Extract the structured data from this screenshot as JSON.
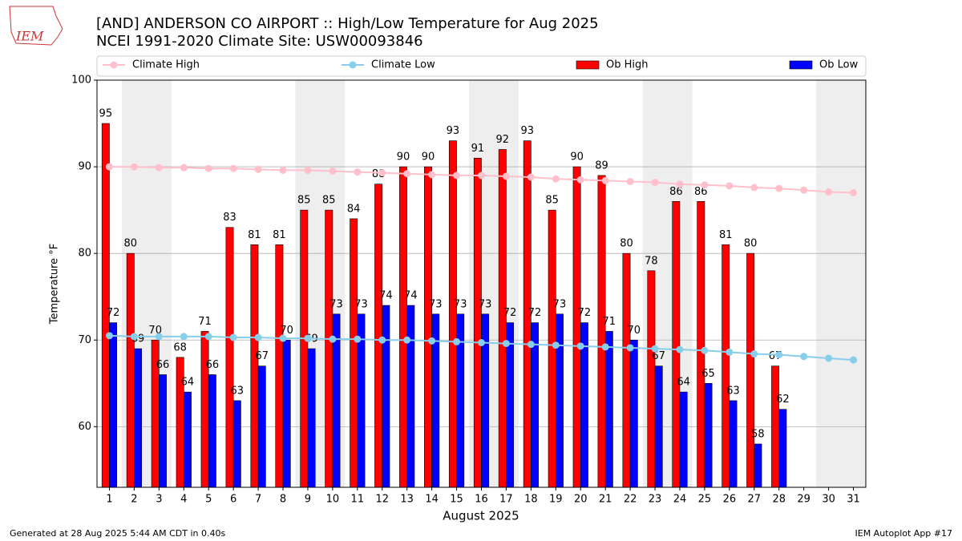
{
  "chart_data": {
    "type": "bar",
    "title": "[AND] ANDERSON CO AIRPORT :: High/Low Temperature for Aug 2025",
    "subtitle": "NCEI 1991-2020 Climate Site: USW00093846",
    "logo_text": "IEM",
    "xlabel": "August 2025",
    "ylabel": "Temperature °F",
    "footer_left": "Generated at 28 Aug 2025 5:44 AM CDT in 0.40s",
    "footer_right": "IEM Autoplot App #17",
    "x": [
      1,
      2,
      3,
      4,
      5,
      6,
      7,
      8,
      9,
      10,
      11,
      12,
      13,
      14,
      15,
      16,
      17,
      18,
      19,
      20,
      21,
      22,
      23,
      24,
      25,
      26,
      27,
      28,
      29,
      30,
      31
    ],
    "xlim": [
      0.5,
      31.5
    ],
    "xticks": [
      1,
      2,
      3,
      4,
      5,
      6,
      7,
      8,
      9,
      10,
      11,
      12,
      13,
      14,
      15,
      16,
      17,
      18,
      19,
      20,
      21,
      22,
      23,
      24,
      25,
      26,
      27,
      28,
      29,
      30,
      31
    ],
    "ylim": [
      53,
      100
    ],
    "yticks": [
      60,
      70,
      80,
      90,
      100
    ],
    "grid": true,
    "shading_color": "#eeeeee",
    "weekend_shading": [
      [
        1.5,
        3.5
      ],
      [
        8.5,
        10.5
      ],
      [
        15.5,
        17.5
      ],
      [
        22.5,
        24.5
      ],
      [
        29.5,
        31.5
      ]
    ],
    "series": [
      {
        "name": "Climate High",
        "kind": "line",
        "color": "#ffc0cb",
        "values": [
          90.0,
          90.0,
          89.9,
          89.9,
          89.8,
          89.8,
          89.7,
          89.6,
          89.6,
          89.5,
          89.4,
          89.3,
          89.2,
          89.1,
          89.0,
          89.0,
          88.9,
          88.8,
          88.6,
          88.5,
          88.4,
          88.3,
          88.2,
          88.0,
          87.9,
          87.8,
          87.6,
          87.5,
          87.3,
          87.1,
          87.0
        ]
      },
      {
        "name": "Climate Low",
        "kind": "line",
        "color": "#87ceeb",
        "values": [
          70.5,
          70.4,
          70.4,
          70.4,
          70.4,
          70.3,
          70.3,
          70.2,
          70.2,
          70.1,
          70.1,
          70.0,
          70.0,
          69.9,
          69.8,
          69.7,
          69.6,
          69.5,
          69.4,
          69.3,
          69.2,
          69.1,
          69.0,
          68.9,
          68.8,
          68.6,
          68.4,
          68.3,
          68.1,
          67.9,
          67.7
        ]
      },
      {
        "name": "Ob High",
        "kind": "bar",
        "color": "#ff0000",
        "offset": -0.3,
        "values": [
          95,
          80,
          70,
          68,
          71,
          83,
          81,
          81,
          85,
          85,
          84,
          88,
          90,
          90,
          93,
          91,
          92,
          93,
          85,
          90,
          89,
          80,
          78,
          86,
          86,
          81,
          80,
          67,
          null,
          null,
          null
        ]
      },
      {
        "name": "Ob Low",
        "kind": "bar",
        "color": "#0000ff",
        "offset": 0,
        "values": [
          72,
          69,
          66,
          64,
          66,
          63,
          67,
          70,
          69,
          73,
          73,
          74,
          74,
          73,
          73,
          73,
          72,
          72,
          73,
          72,
          71,
          70,
          67,
          64,
          65,
          63,
          58,
          62,
          null,
          null,
          null
        ]
      }
    ]
  }
}
